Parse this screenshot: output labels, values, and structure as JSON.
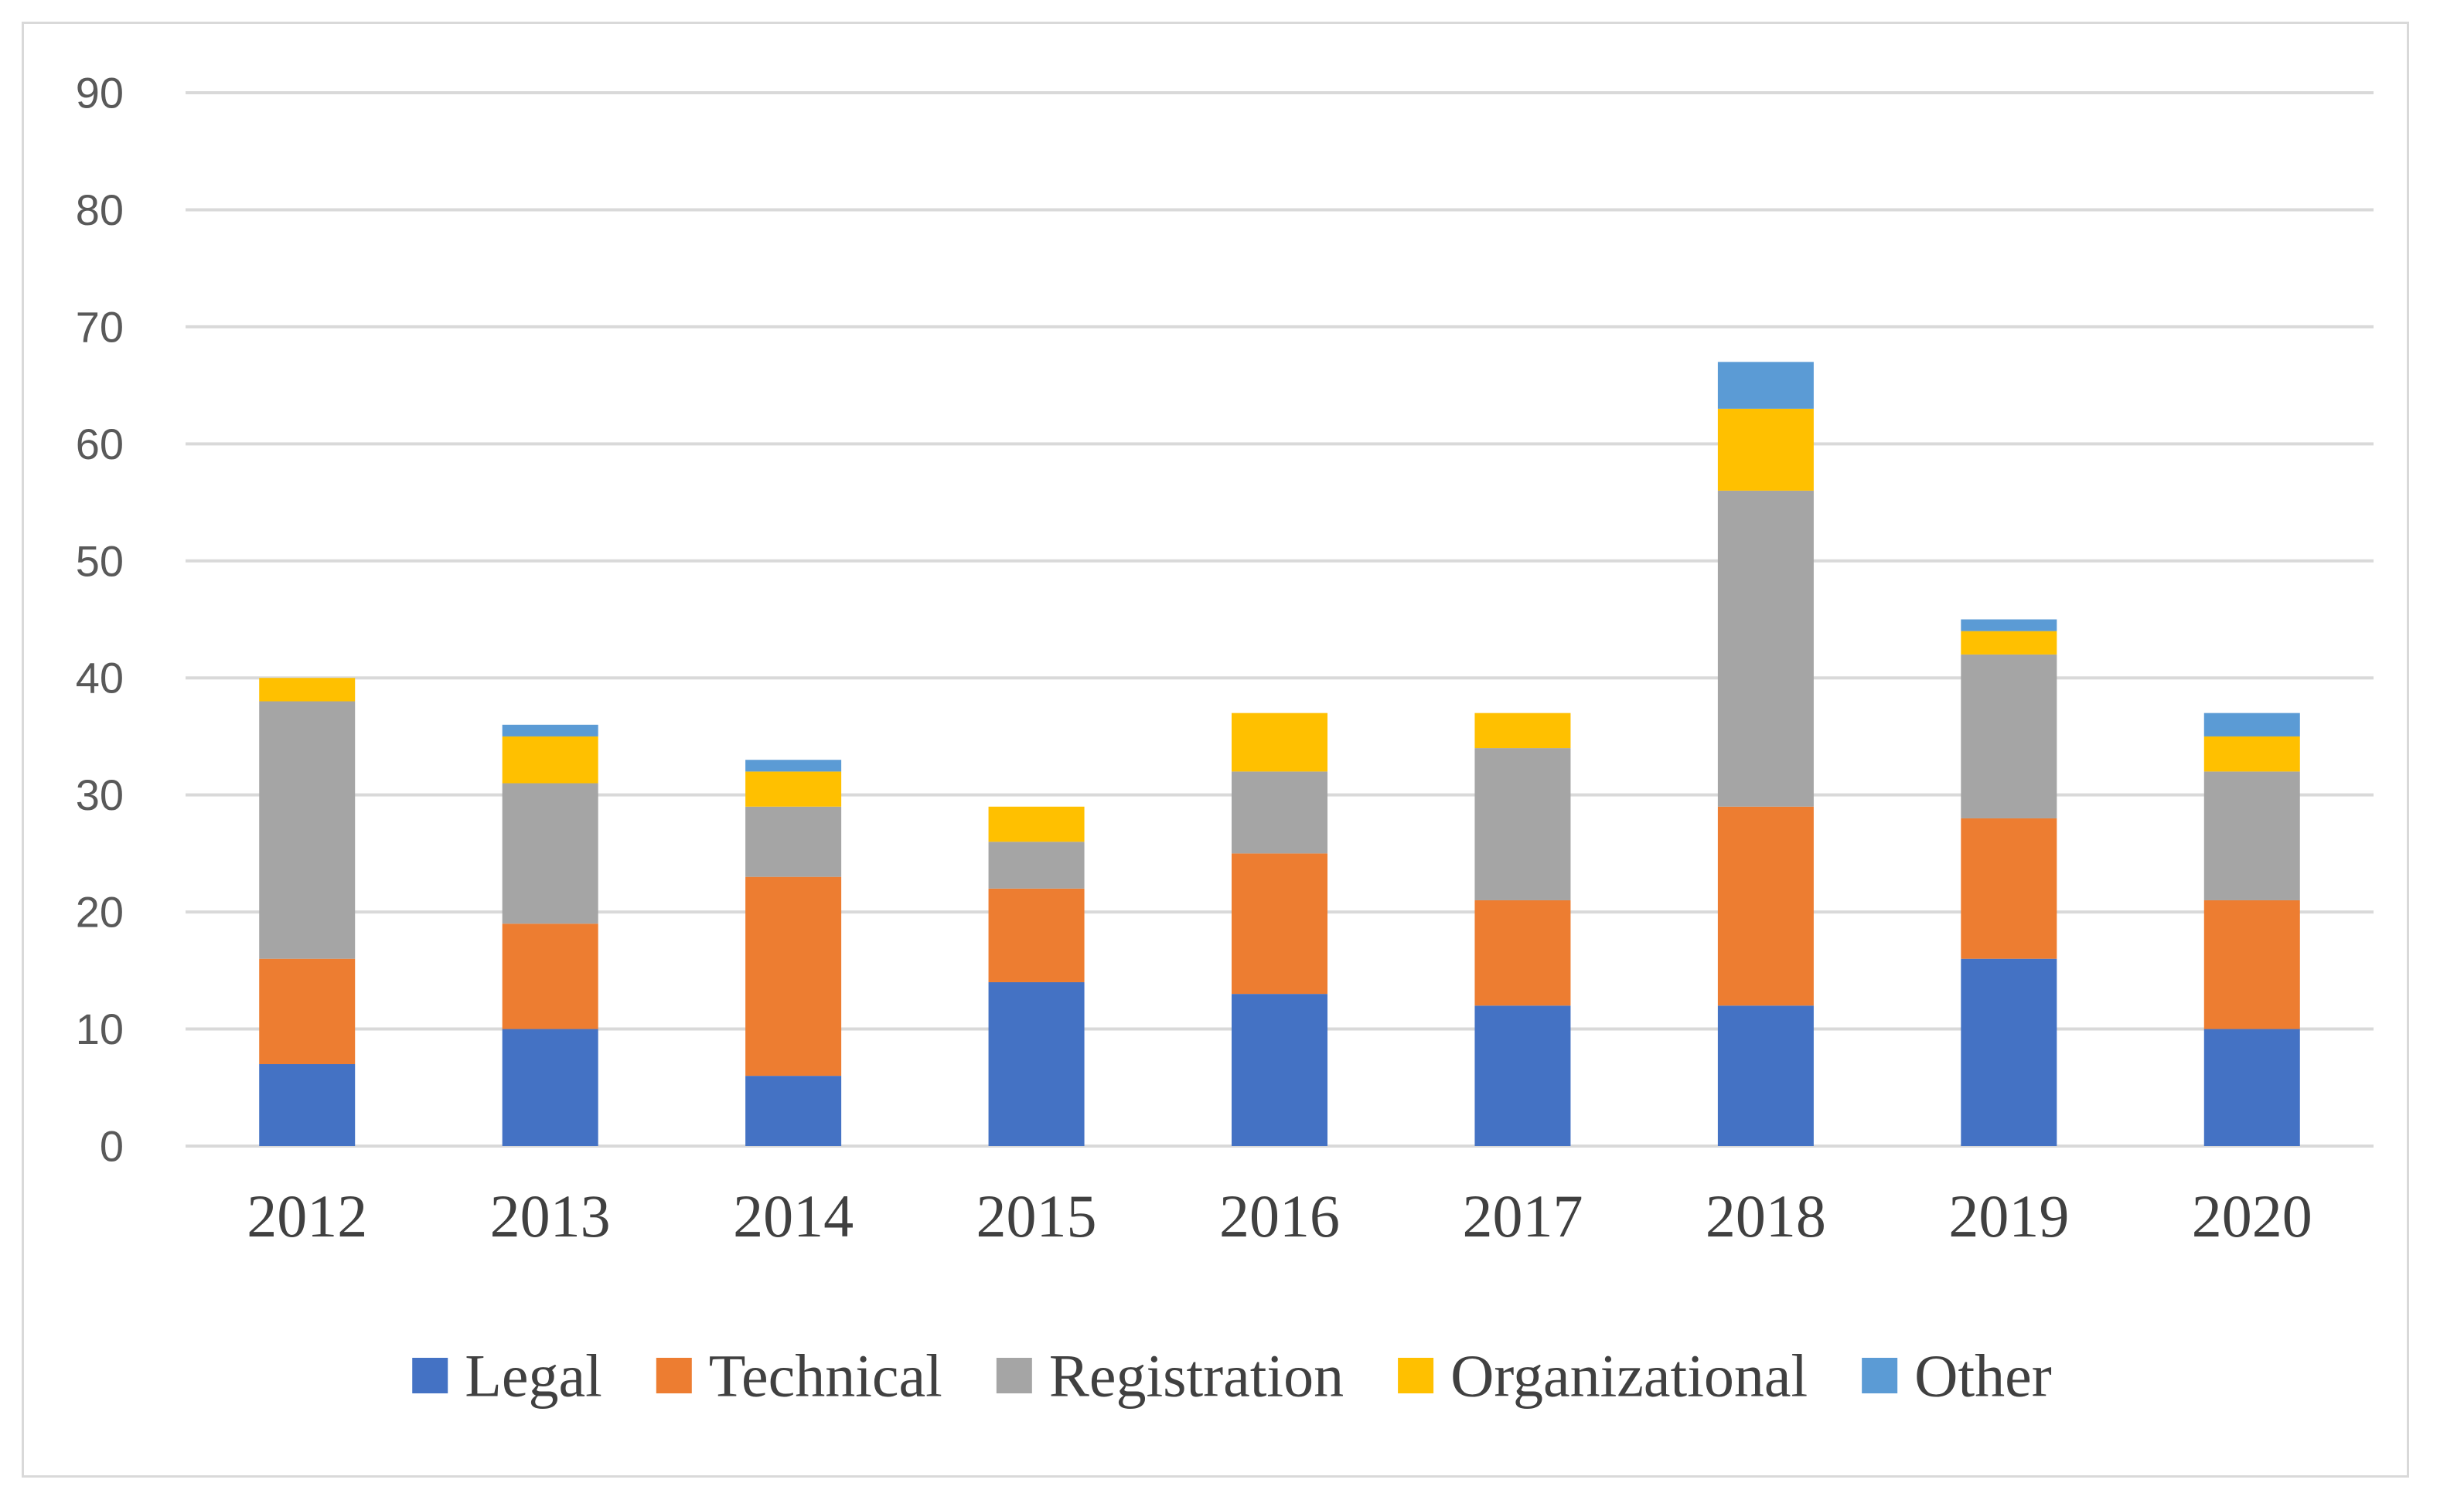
{
  "chart_data": {
    "type": "bar",
    "stacked": true,
    "title": "",
    "xlabel": "",
    "ylabel": "",
    "ylim": [
      0,
      90
    ],
    "yticks": [
      "0",
      "10",
      "20",
      "30",
      "40",
      "50",
      "60",
      "70",
      "80",
      "90"
    ],
    "grid": true,
    "legend_position": "bottom",
    "categories": [
      "2012",
      "2013",
      "2014",
      "2015",
      "2016",
      "2017",
      "2018",
      "2019",
      "2020"
    ],
    "series": [
      {
        "name": "Legal",
        "color": "#4472C4",
        "values": [
          7,
          10,
          6,
          14,
          13,
          12,
          12,
          16,
          10
        ]
      },
      {
        "name": "Technical",
        "color": "#ED7D31",
        "values": [
          9,
          9,
          17,
          8,
          12,
          9,
          17,
          12,
          11
        ]
      },
      {
        "name": "Registration",
        "color": "#A5A5A5",
        "values": [
          22,
          12,
          6,
          4,
          7,
          13,
          27,
          14,
          11
        ]
      },
      {
        "name": "Organizational",
        "color": "#FFC000",
        "values": [
          2,
          4,
          3,
          3,
          5,
          3,
          7,
          2,
          3
        ]
      },
      {
        "name": "Other",
        "color": "#5B9BD5",
        "values": [
          0,
          1,
          1,
          0,
          0,
          0,
          4,
          1,
          2
        ]
      }
    ]
  }
}
